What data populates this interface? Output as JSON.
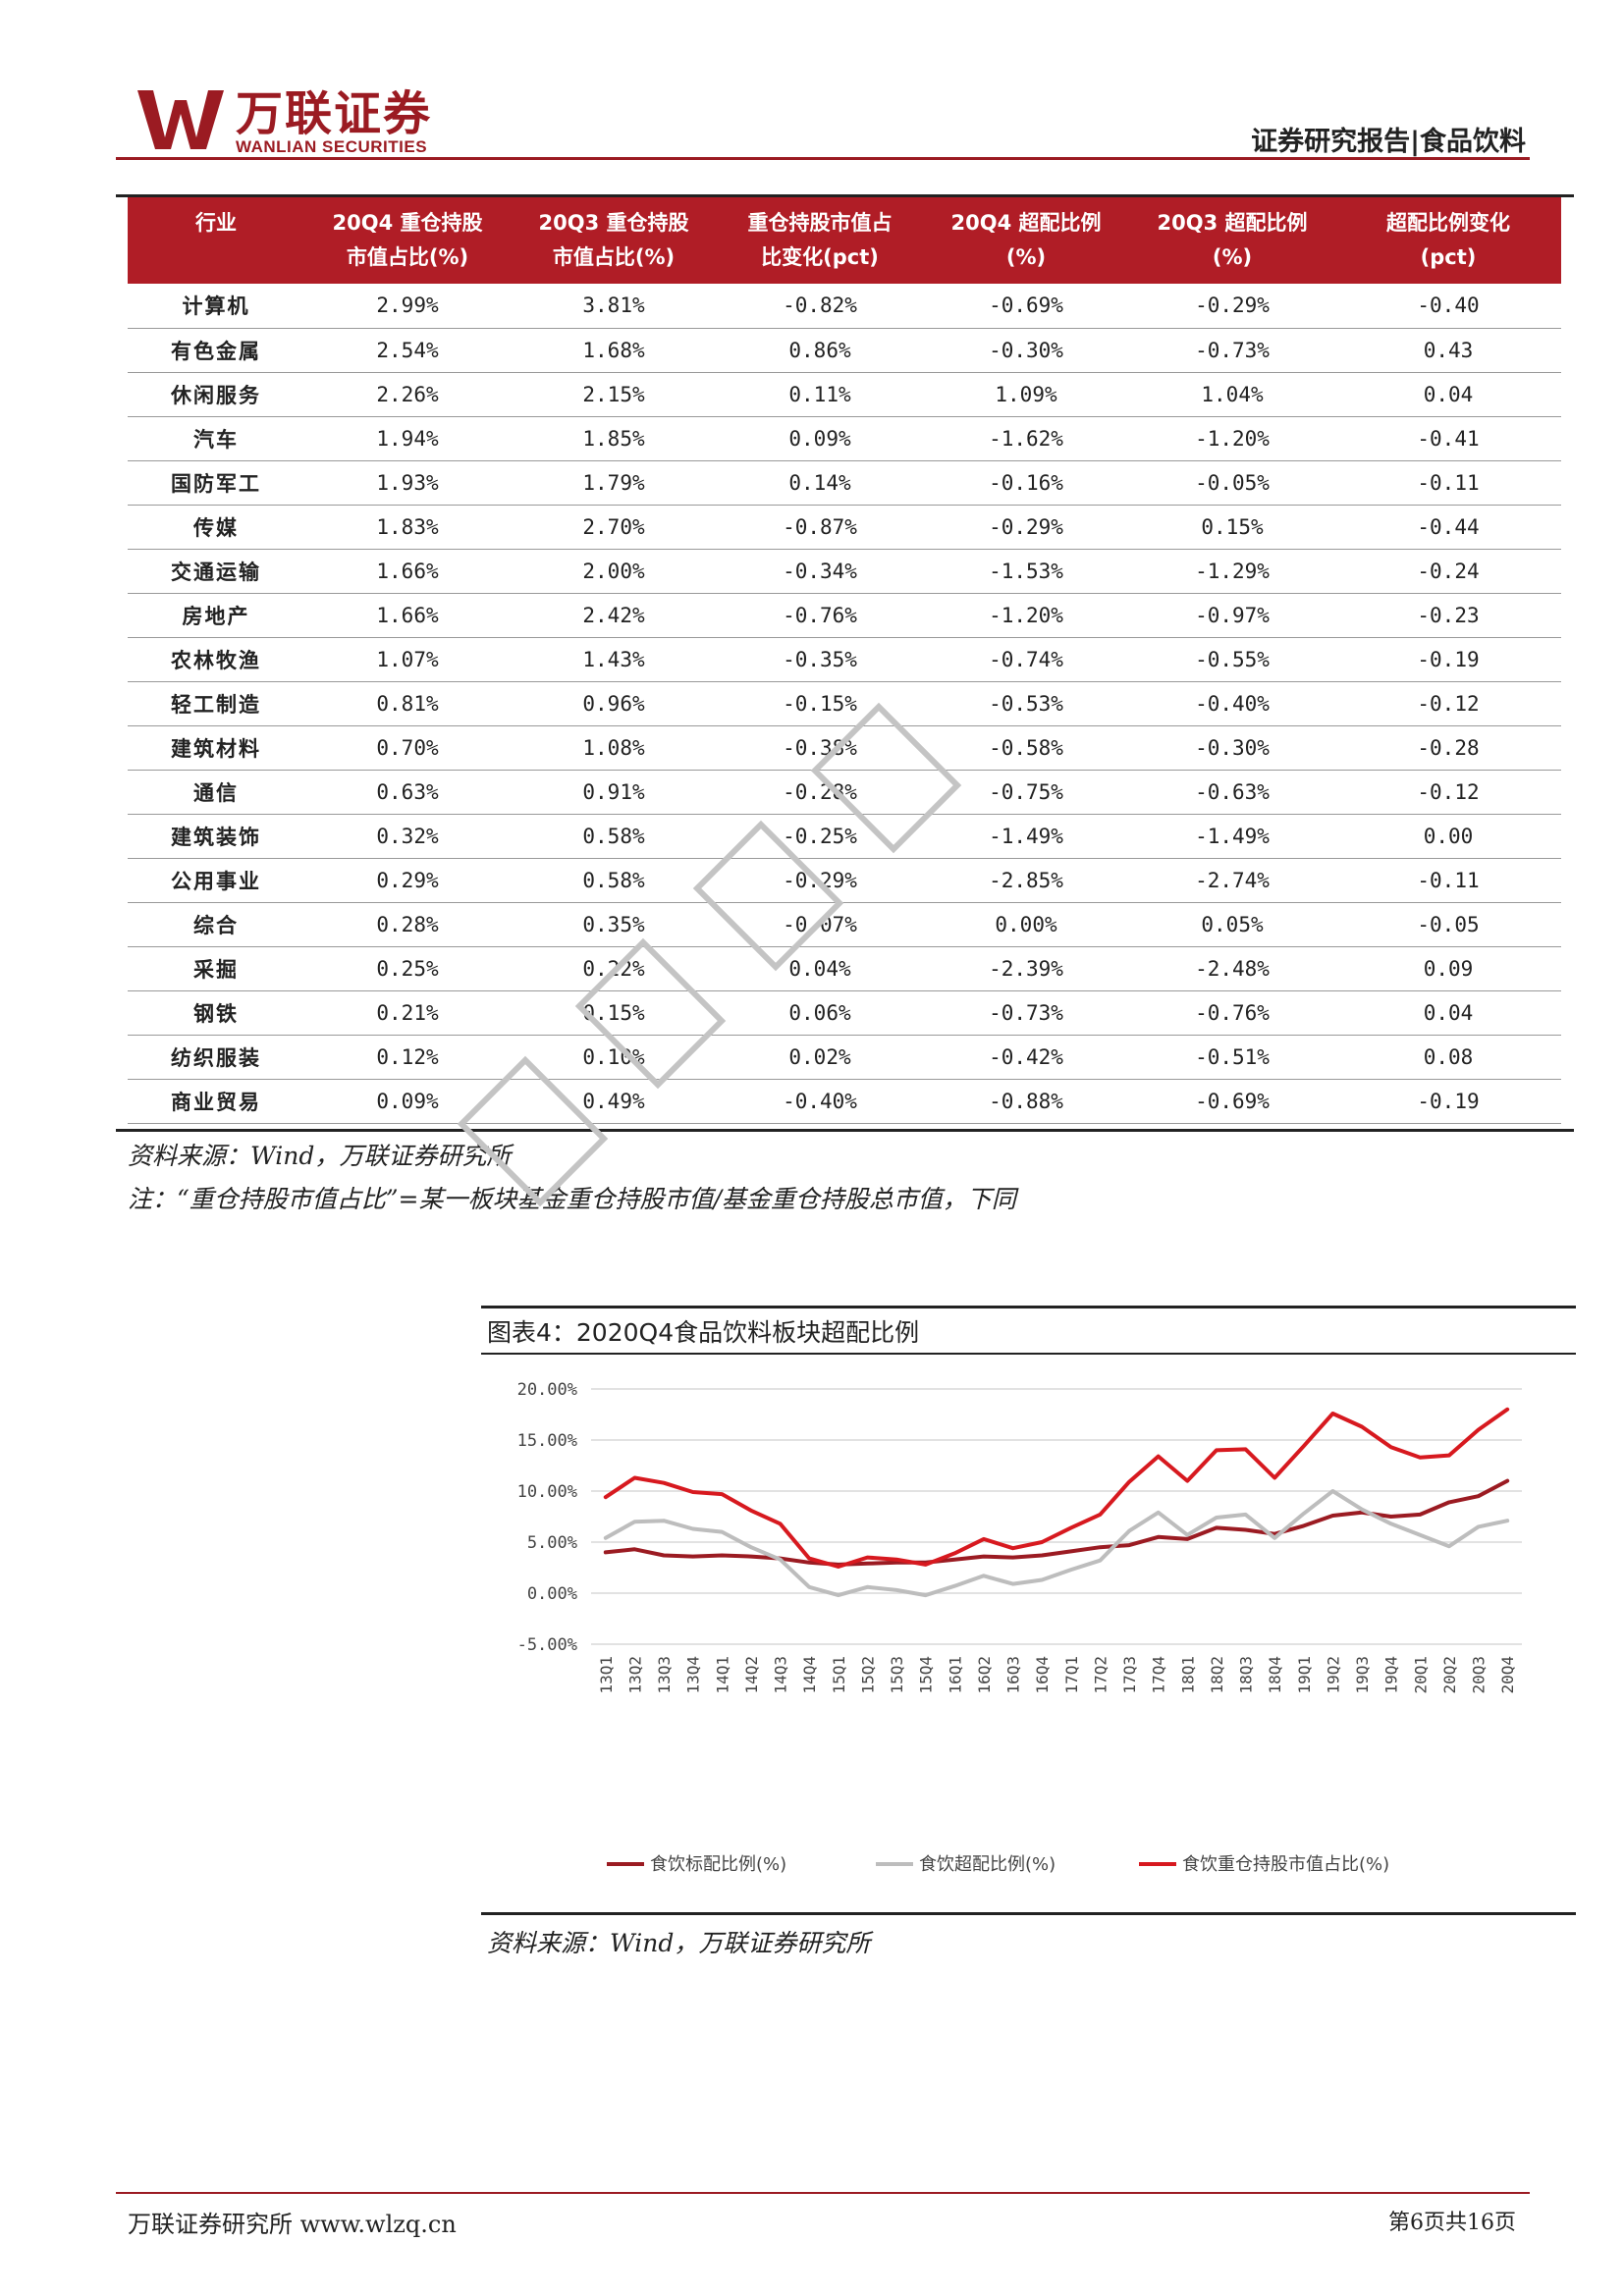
{
  "header": {
    "logo_cn": "万联证券",
    "logo_en": "WANLIAN SECURITIES",
    "report_tag": "证券研究报告|食品饮料"
  },
  "table": {
    "headers_line1": [
      "行业",
      "20Q4 重仓持股",
      "20Q3 重仓持股",
      "重仓持股市值占",
      "20Q4 超配比例",
      "20Q3 超配比例",
      "超配比例变化"
    ],
    "headers_line2": [
      "",
      "市值占比(%)",
      "市值占比(%)",
      "比变化(pct)",
      "(%)",
      "(%)",
      "(pct)"
    ],
    "rows": [
      [
        "计算机",
        "2.99%",
        "3.81%",
        "-0.82%",
        "-0.69%",
        "-0.29%",
        "-0.40"
      ],
      [
        "有色金属",
        "2.54%",
        "1.68%",
        "0.86%",
        "-0.30%",
        "-0.73%",
        "0.43"
      ],
      [
        "休闲服务",
        "2.26%",
        "2.15%",
        "0.11%",
        "1.09%",
        "1.04%",
        "0.04"
      ],
      [
        "汽车",
        "1.94%",
        "1.85%",
        "0.09%",
        "-1.62%",
        "-1.20%",
        "-0.41"
      ],
      [
        "国防军工",
        "1.93%",
        "1.79%",
        "0.14%",
        "-0.16%",
        "-0.05%",
        "-0.11"
      ],
      [
        "传媒",
        "1.83%",
        "2.70%",
        "-0.87%",
        "-0.29%",
        "0.15%",
        "-0.44"
      ],
      [
        "交通运输",
        "1.66%",
        "2.00%",
        "-0.34%",
        "-1.53%",
        "-1.29%",
        "-0.24"
      ],
      [
        "房地产",
        "1.66%",
        "2.42%",
        "-0.76%",
        "-1.20%",
        "-0.97%",
        "-0.23"
      ],
      [
        "农林牧渔",
        "1.07%",
        "1.43%",
        "-0.35%",
        "-0.74%",
        "-0.55%",
        "-0.19"
      ],
      [
        "轻工制造",
        "0.81%",
        "0.96%",
        "-0.15%",
        "-0.53%",
        "-0.40%",
        "-0.12"
      ],
      [
        "建筑材料",
        "0.70%",
        "1.08%",
        "-0.38%",
        "-0.58%",
        "-0.30%",
        "-0.28"
      ],
      [
        "通信",
        "0.63%",
        "0.91%",
        "-0.28%",
        "-0.75%",
        "-0.63%",
        "-0.12"
      ],
      [
        "建筑装饰",
        "0.32%",
        "0.58%",
        "-0.25%",
        "-1.49%",
        "-1.49%",
        "0.00"
      ],
      [
        "公用事业",
        "0.29%",
        "0.58%",
        "-0.29%",
        "-2.85%",
        "-2.74%",
        "-0.11"
      ],
      [
        "综合",
        "0.28%",
        "0.35%",
        "-0.07%",
        "0.00%",
        "0.05%",
        "-0.05"
      ],
      [
        "采掘",
        "0.25%",
        "0.22%",
        "0.04%",
        "-2.39%",
        "-2.48%",
        "0.09"
      ],
      [
        "钢铁",
        "0.21%",
        "0.15%",
        "0.06%",
        "-0.73%",
        "-0.76%",
        "0.04"
      ],
      [
        "纺织服装",
        "0.12%",
        "0.10%",
        "0.02%",
        "-0.42%",
        "-0.51%",
        "0.08"
      ],
      [
        "商业贸易",
        "0.09%",
        "0.49%",
        "-0.40%",
        "-0.88%",
        "-0.69%",
        "-0.19"
      ]
    ]
  },
  "notes": {
    "source": "资料来源：Wind，万联证券研究所",
    "note": "注：“重仓持股市值占比”=某一板块基金重仓持股市值/基金重仓持股总市值，下同"
  },
  "chart_title": "图表4：2020Q4食品饮料板块超配比例",
  "chart_source": "资料来源：Wind，万联证券研究所",
  "chart_data": {
    "type": "line",
    "title": "图表4：2020Q4食品饮料板块超配比例",
    "categories": [
      "13Q1",
      "13Q2",
      "13Q3",
      "13Q4",
      "14Q1",
      "14Q2",
      "14Q3",
      "14Q4",
      "15Q1",
      "15Q2",
      "15Q3",
      "15Q4",
      "16Q1",
      "16Q2",
      "16Q3",
      "16Q4",
      "17Q1",
      "17Q2",
      "17Q3",
      "17Q4",
      "18Q1",
      "18Q2",
      "18Q3",
      "18Q4",
      "19Q1",
      "19Q2",
      "19Q3",
      "19Q4",
      "20Q1",
      "20Q2",
      "20Q3",
      "20Q4"
    ],
    "y_ticks": [
      "20.00%",
      "15.00%",
      "10.00%",
      "5.00%",
      "0.00%",
      "-5.00%"
    ],
    "ylim": [
      -5,
      20
    ],
    "series": [
      {
        "name": "食饮标配比例(%)",
        "color": "#9b1b22",
        "width": 4,
        "values": [
          4.0,
          4.3,
          3.7,
          3.6,
          3.7,
          3.6,
          3.4,
          3.0,
          2.8,
          2.9,
          3.0,
          3.0,
          3.3,
          3.6,
          3.5,
          3.7,
          4.1,
          4.5,
          4.7,
          5.5,
          5.3,
          6.4,
          6.2,
          5.8,
          6.6,
          7.6,
          7.9,
          7.5,
          7.7,
          8.9,
          9.5,
          11.0
        ]
      },
      {
        "name": "食饮超配比例(%)",
        "color": "#bdbdbd",
        "width": 4,
        "values": [
          5.4,
          7.0,
          7.1,
          6.3,
          6.0,
          4.5,
          3.3,
          0.6,
          -0.2,
          0.6,
          0.3,
          -0.2,
          0.7,
          1.7,
          0.9,
          1.3,
          2.3,
          3.2,
          6.1,
          7.9,
          5.7,
          7.4,
          7.7,
          5.4,
          7.8,
          10.0,
          8.2,
          6.8,
          5.7,
          4.6,
          6.5,
          7.1
        ]
      },
      {
        "name": "食饮重仓持股市值占比(%)",
        "color": "#d7191f",
        "width": 4,
        "values": [
          9.4,
          11.3,
          10.8,
          9.9,
          9.7,
          8.1,
          6.8,
          3.4,
          2.6,
          3.5,
          3.3,
          2.8,
          3.9,
          5.3,
          4.4,
          5.0,
          6.4,
          7.7,
          10.9,
          13.4,
          11.0,
          14.0,
          14.1,
          11.3,
          14.4,
          17.6,
          16.3,
          14.3,
          13.3,
          13.5,
          16.0,
          18.0
        ]
      }
    ]
  },
  "footer": {
    "left": "万联证券研究所 www.wlzq.cn",
    "right": "第6页共16页"
  }
}
